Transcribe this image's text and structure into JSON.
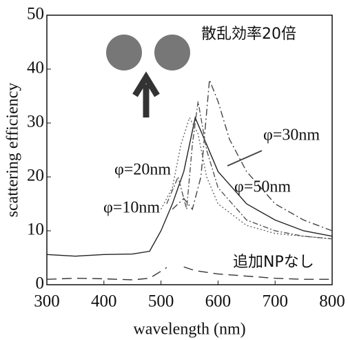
{
  "chart_data": {
    "type": "line",
    "x_label": "wavelength (nm)",
    "y_label": "scattering efficiency",
    "xlim": [
      300,
      800
    ],
    "ylim": [
      0,
      50
    ],
    "xticks": [
      300,
      400,
      500,
      600,
      700,
      800
    ],
    "yticks": [
      0,
      10,
      20,
      30,
      40,
      50
    ],
    "annotations": [
      "散乱効率20倍"
    ],
    "series": [
      {
        "name": "φ=10nm",
        "color": "#222222",
        "x": [
          300,
          350,
          400,
          450,
          480,
          500,
          520,
          540,
          560,
          580,
          600,
          650,
          700,
          750,
          800
        ],
        "values": [
          5.6,
          5.3,
          5.6,
          5.7,
          6.2,
          10,
          15,
          21,
          31,
          26,
          21,
          15,
          12,
          10,
          9
        ]
      },
      {
        "name": "φ=20nm",
        "color": "#666666",
        "x": [
          500,
          520,
          535,
          550,
          565,
          580,
          600,
          650,
          700,
          750,
          800
        ],
        "values": [
          14,
          18,
          26,
          31,
          28,
          20,
          15,
          11,
          9.5,
          9,
          8.5
        ]
      },
      {
        "name": "φ=30nm",
        "color": "#444444",
        "x": [
          520,
          540,
          555,
          570,
          585,
          600,
          620,
          650,
          700,
          750,
          800
        ],
        "values": [
          14,
          16,
          14,
          20,
          38,
          34,
          27,
          21,
          15,
          12,
          10
        ]
      },
      {
        "name": "φ=50nm",
        "color": "#555555",
        "x": [
          510,
          530,
          545,
          555,
          565,
          580,
          600,
          650,
          700,
          750,
          800
        ],
        "values": [
          15,
          20,
          14,
          26,
          34,
          25,
          18,
          12,
          10,
          9,
          8.5
        ]
      },
      {
        "name": "追加NPなし",
        "color": "#333333",
        "x": [
          300,
          350,
          400,
          450,
          480,
          500,
          510,
          520,
          540,
          560,
          600,
          650,
          700,
          750,
          800
        ],
        "values": [
          1,
          1.2,
          1.1,
          0.9,
          1.2,
          2.5,
          3.2,
          null,
          3.3,
          2.6,
          2,
          1.6,
          1.2,
          1,
          1
        ]
      }
    ]
  }
}
